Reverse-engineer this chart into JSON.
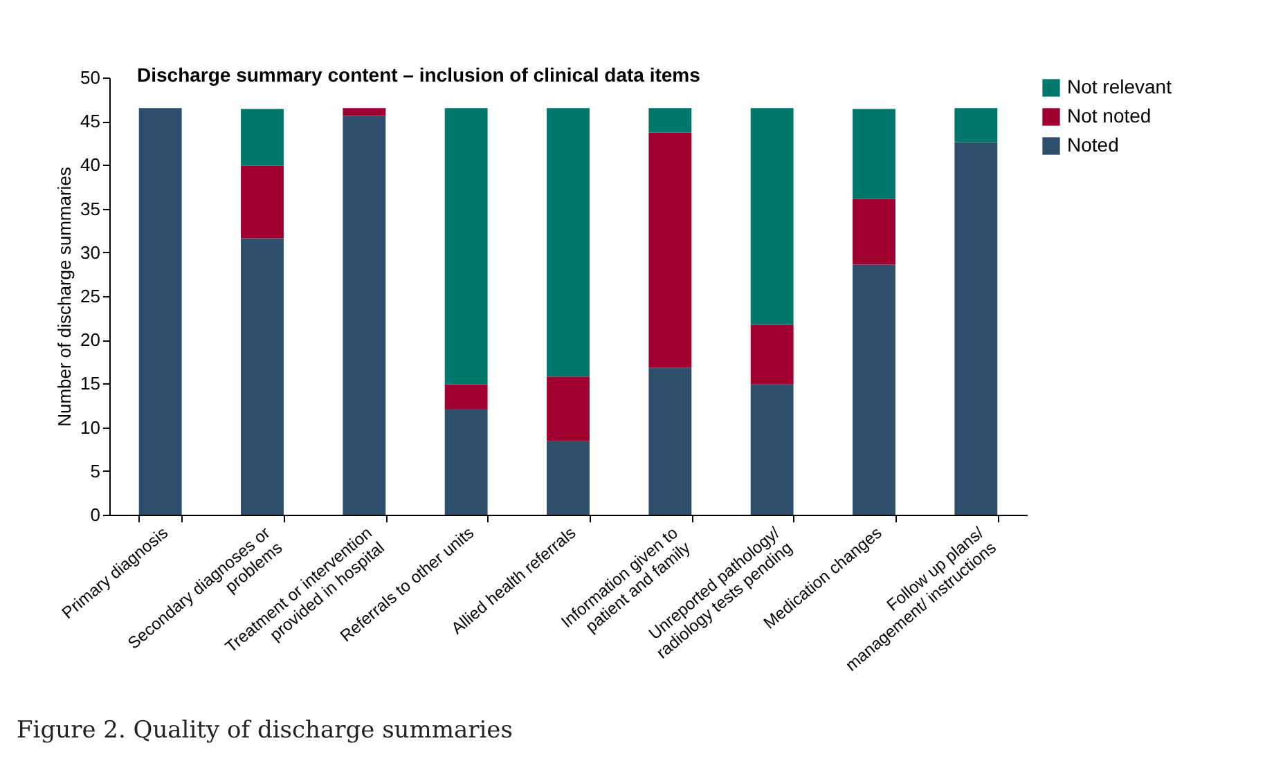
{
  "chart_data": {
    "type": "bar",
    "stacked": true,
    "title": "Discharge summary content – inclusion of clinical data items",
    "ylabel": "Number of discharge summaries",
    "categories": [
      "Primary diagnosis",
      "Secondary diagnoses or problems",
      "Treatment or intervention provided in hospital",
      "Referrals to other units",
      "Allied health referrals",
      "Information given to patient and family",
      "Unreported pathology/ radiology tests pending",
      "Medication changes",
      "Follow up plans/ management/ instructions"
    ],
    "series": [
      {
        "name": "Noted",
        "color": "#2d4f6b",
        "values": [
          46.5,
          31.6,
          45.6,
          12.1,
          8.4,
          16.8,
          14.9,
          28.6,
          42.6
        ]
      },
      {
        "name": "Not noted",
        "color": "#a00030",
        "values": [
          0,
          8.3,
          0.9,
          2.8,
          7.4,
          26.9,
          6.8,
          7.5,
          0
        ]
      },
      {
        "name": "Not relevant",
        "color": "#00776b",
        "values": [
          0,
          6.5,
          0,
          31.6,
          30.7,
          2.8,
          24.8,
          10.3,
          3.9
        ]
      }
    ],
    "ylim": [
      0,
      50
    ],
    "yticks": [
      0,
      5,
      10,
      15,
      20,
      25,
      30,
      35,
      40,
      45,
      50
    ],
    "grid": false,
    "legend": "top right",
    "annotations": [
      "Figure 2. Quality of discharge summaries"
    ]
  }
}
